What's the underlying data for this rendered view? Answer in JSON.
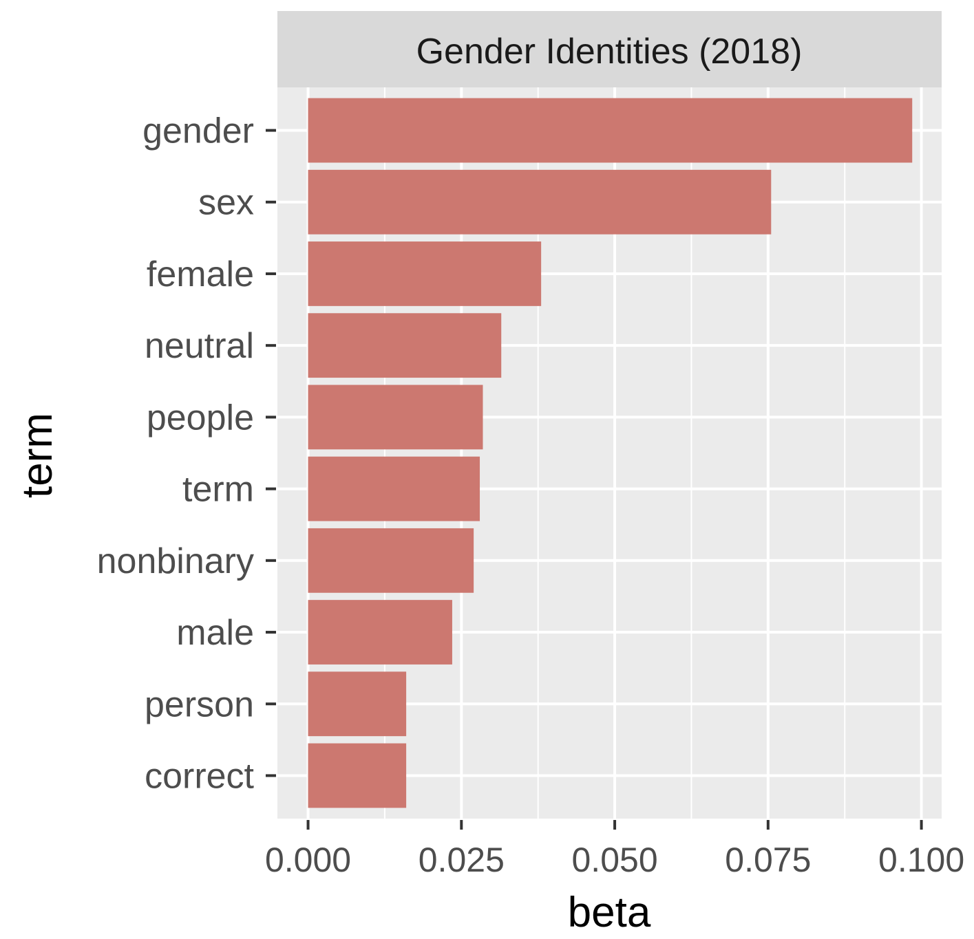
{
  "chart_data": {
    "type": "bar",
    "orientation": "horizontal",
    "title": "Gender Identities (2018)",
    "xlabel": "beta",
    "ylabel": "term",
    "categories": [
      "gender",
      "sex",
      "female",
      "neutral",
      "people",
      "term",
      "nonbinary",
      "male",
      "person",
      "correct"
    ],
    "values": [
      0.0985,
      0.0755,
      0.038,
      0.0315,
      0.0285,
      0.028,
      0.027,
      0.0235,
      0.016,
      0.016
    ],
    "xlim": [
      -0.005,
      0.1033
    ],
    "xticks": [
      0,
      0.025,
      0.05,
      0.075,
      0.1
    ],
    "xtick_labels": [
      "0.000",
      "0.025",
      "0.050",
      "0.075",
      "0.100"
    ],
    "grid": true,
    "legend": "none",
    "colors": {
      "bar": "#CC7870",
      "panel_background": "#EBEBEB",
      "strip_background": "#D9D9D9",
      "grid_line": "#FFFFFF",
      "tick_text": "#4D4D4D",
      "axis_title": "#000000"
    }
  }
}
